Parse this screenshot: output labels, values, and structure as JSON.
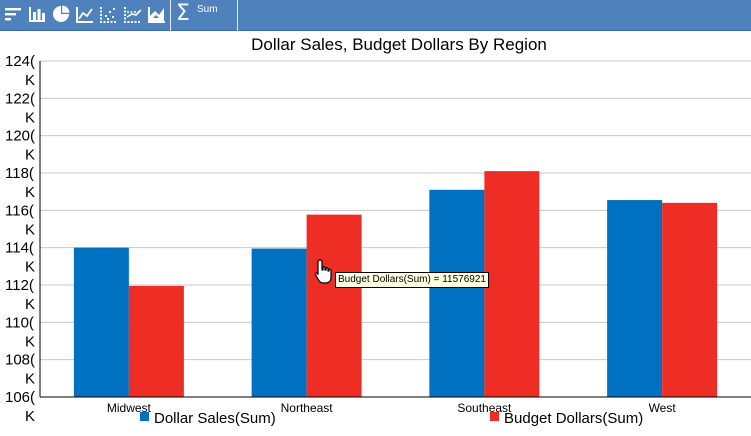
{
  "toolbar": {
    "icons": [
      "sort-icon",
      "bar-chart-icon",
      "pie-chart-icon",
      "line-chart-icon",
      "scatter-chart-icon",
      "trend-chart-icon",
      "area-chart-icon"
    ],
    "sum_symbol": "Σ",
    "sum_label": "Sum",
    "color": "#4f81bd"
  },
  "tooltip": {
    "text": "Budget Dollars(Sum) = 11576921"
  },
  "chart_data": {
    "type": "bar",
    "title": "Dollar Sales, Budget Dollars By Region",
    "xlabel": "",
    "ylabel": "",
    "categories": [
      "Midwest",
      "Northeast",
      "Southeast",
      "West"
    ],
    "series": [
      {
        "name": "Dollar Sales(Sum)",
        "color": "#0070c0",
        "values": [
          11400000,
          11395000,
          11710000,
          11655000
        ]
      },
      {
        "name": "Budget Dollars(Sum)",
        "color": "#ee2d24",
        "values": [
          11195000,
          11576921,
          11810000,
          11640000
        ]
      }
    ],
    "ylim": [
      10600000,
      12400000
    ],
    "yticks": [
      {
        "value": 12400000,
        "l1": "124(",
        "l2": "K"
      },
      {
        "value": 12200000,
        "l1": "122(",
        "l2": "K"
      },
      {
        "value": 12000000,
        "l1": "120(",
        "l2": "K"
      },
      {
        "value": 11800000,
        "l1": "118(",
        "l2": "K"
      },
      {
        "value": 11600000,
        "l1": "116(",
        "l2": "K"
      },
      {
        "value": 11400000,
        "l1": "114(",
        "l2": "K"
      },
      {
        "value": 11200000,
        "l1": "112(",
        "l2": "K"
      },
      {
        "value": 11000000,
        "l1": "110(",
        "l2": "K"
      },
      {
        "value": 10800000,
        "l1": "108(",
        "l2": "K"
      },
      {
        "value": 10600000,
        "l1": "106(",
        "l2": "K"
      }
    ],
    "grid": true,
    "legend": "bottom"
  }
}
